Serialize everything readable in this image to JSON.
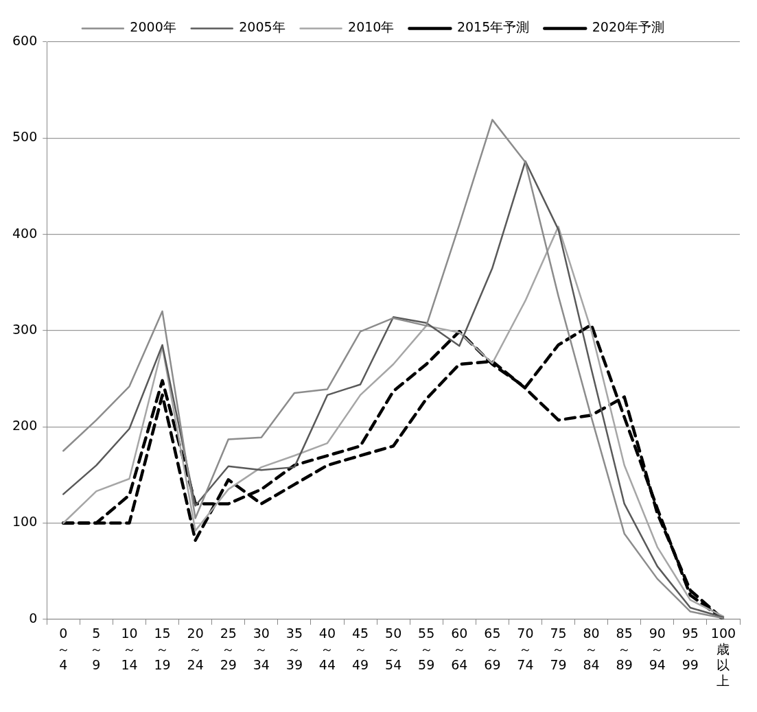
{
  "chart_data": {
    "type": "line",
    "categories": [
      "0～4",
      "5～9",
      "10～14",
      "15～19",
      "20～24",
      "25～29",
      "30～34",
      "35～39",
      "40～44",
      "45～49",
      "50～54",
      "55～59",
      "60～64",
      "65～69",
      "70～74",
      "75～79",
      "80～84",
      "85～89",
      "90～94",
      "95～99",
      "100歳以上"
    ],
    "series": [
      {
        "name": "2000年",
        "color": "#8c8c8c",
        "line_style": "solid",
        "values": [
          175,
          207,
          242,
          320,
          105,
          187,
          189,
          235,
          239,
          299,
          313,
          305,
          410,
          519,
          475,
          336,
          210,
          89,
          42,
          8,
          1
        ]
      },
      {
        "name": "2005年",
        "color": "#595959",
        "line_style": "solid",
        "values": [
          130,
          160,
          198,
          285,
          118,
          159,
          155,
          158,
          233,
          244,
          314,
          308,
          284,
          365,
          476,
          405,
          260,
          120,
          55,
          12,
          2
        ]
      },
      {
        "name": "2010年",
        "color": "#a6a6a6",
        "line_style": "solid",
        "values": [
          100,
          133,
          146,
          283,
          92,
          135,
          158,
          170,
          183,
          233,
          265,
          305,
          298,
          266,
          331,
          408,
          300,
          160,
          75,
          20,
          3
        ]
      },
      {
        "name": "2015年予測",
        "color": "#000000",
        "line_style": "dashed",
        "values": [
          100,
          100,
          129,
          248,
          120,
          120,
          135,
          160,
          170,
          180,
          237,
          265,
          299,
          265,
          241,
          285,
          306,
          210,
          115,
          25,
          0
        ]
      },
      {
        "name": "2020年予測",
        "color": "#000000",
        "line_style": "dashed",
        "values": [
          100,
          100,
          100,
          233,
          82,
          145,
          120,
          140,
          160,
          170,
          180,
          229,
          265,
          268,
          240,
          207,
          212,
          231,
          110,
          30,
          0
        ]
      }
    ],
    "ylim": [
      0,
      600
    ],
    "yticks": [
      0,
      100,
      200,
      300,
      400,
      500,
      600
    ],
    "grid": "y",
    "legend": "top",
    "marker": "none"
  }
}
